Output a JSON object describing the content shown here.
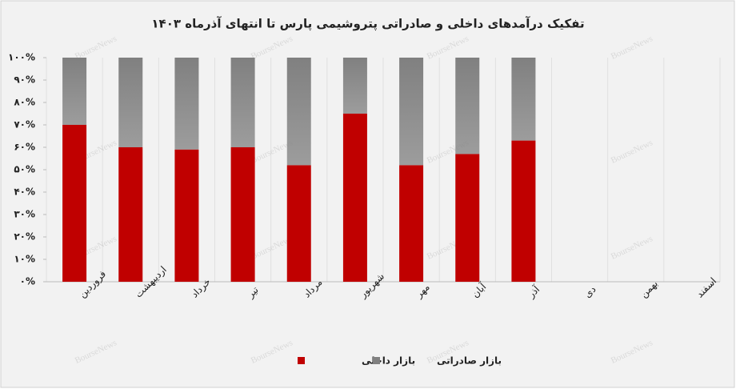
{
  "chart_data": {
    "type": "stacked_bar",
    "title": "تفکیک درآمدهای داخلی و صادراتی پتروشیمی پارس تا انتهای آذرماه ۱۴۰۳",
    "watermark": "BourseNews",
    "categories": [
      "فروردین",
      "اردیبهشت",
      "خرداد",
      "تیر",
      "مرداد",
      "شهریور",
      "مهر",
      "آبان",
      "آذر",
      "دی",
      "بهمن",
      "اسفند"
    ],
    "series": [
      {
        "name": "بازار داخلی",
        "color": "#c00000",
        "values": [
          70,
          60,
          59,
          60,
          52,
          75,
          52,
          57,
          63,
          null,
          null,
          null
        ]
      },
      {
        "name": "بازار صادراتی",
        "color": "#808080",
        "values": [
          30,
          40,
          41,
          40,
          48,
          25,
          48,
          43,
          37,
          null,
          null,
          null
        ]
      }
    ],
    "ylim": [
      0,
      100
    ],
    "yticks": [
      {
        "value": 0,
        "label": "۰%"
      },
      {
        "value": 10,
        "label": "۱۰%"
      },
      {
        "value": 20,
        "label": "۲۰%"
      },
      {
        "value": 30,
        "label": "۳۰%"
      },
      {
        "value": 40,
        "label": "۴۰%"
      },
      {
        "value": 50,
        "label": "۵۰%"
      },
      {
        "value": 60,
        "label": "۶۰%"
      },
      {
        "value": 70,
        "label": "۷۰%"
      },
      {
        "value": 80,
        "label": "۸۰%"
      },
      {
        "value": 90,
        "label": "۹۰%"
      },
      {
        "value": 100,
        "label": "۱۰۰%"
      }
    ],
    "legend": "bottom"
  }
}
